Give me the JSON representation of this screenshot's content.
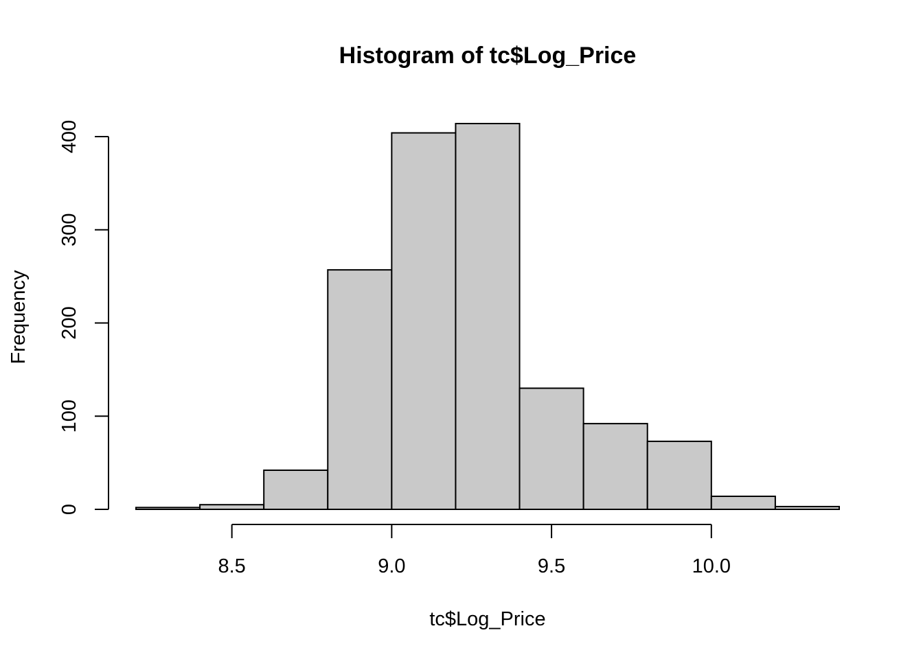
{
  "chart_data": {
    "type": "bar",
    "title": "Histogram of tc$Log_Price",
    "xlabel": "tc$Log_Price",
    "ylabel": "Frequency",
    "bin_edges": [
      8.2,
      8.4,
      8.6,
      8.8,
      9.0,
      9.2,
      9.4,
      9.6,
      9.8,
      10.0,
      10.2,
      10.4
    ],
    "values": [
      2,
      5,
      42,
      257,
      404,
      414,
      130,
      92,
      73,
      14,
      3
    ],
    "xlim": [
      8.2,
      10.4
    ],
    "ylim": [
      0,
      414
    ],
    "x_ticks": [
      "8.5",
      "9.0",
      "9.5",
      "10.0"
    ],
    "x_tick_values": [
      8.5,
      9.0,
      9.5,
      10.0
    ],
    "y_ticks": [
      "0",
      "100",
      "200",
      "300",
      "400"
    ],
    "y_tick_values": [
      0,
      100,
      200,
      300,
      400
    ],
    "bar_color": "#c9c9c9",
    "grid": false
  }
}
